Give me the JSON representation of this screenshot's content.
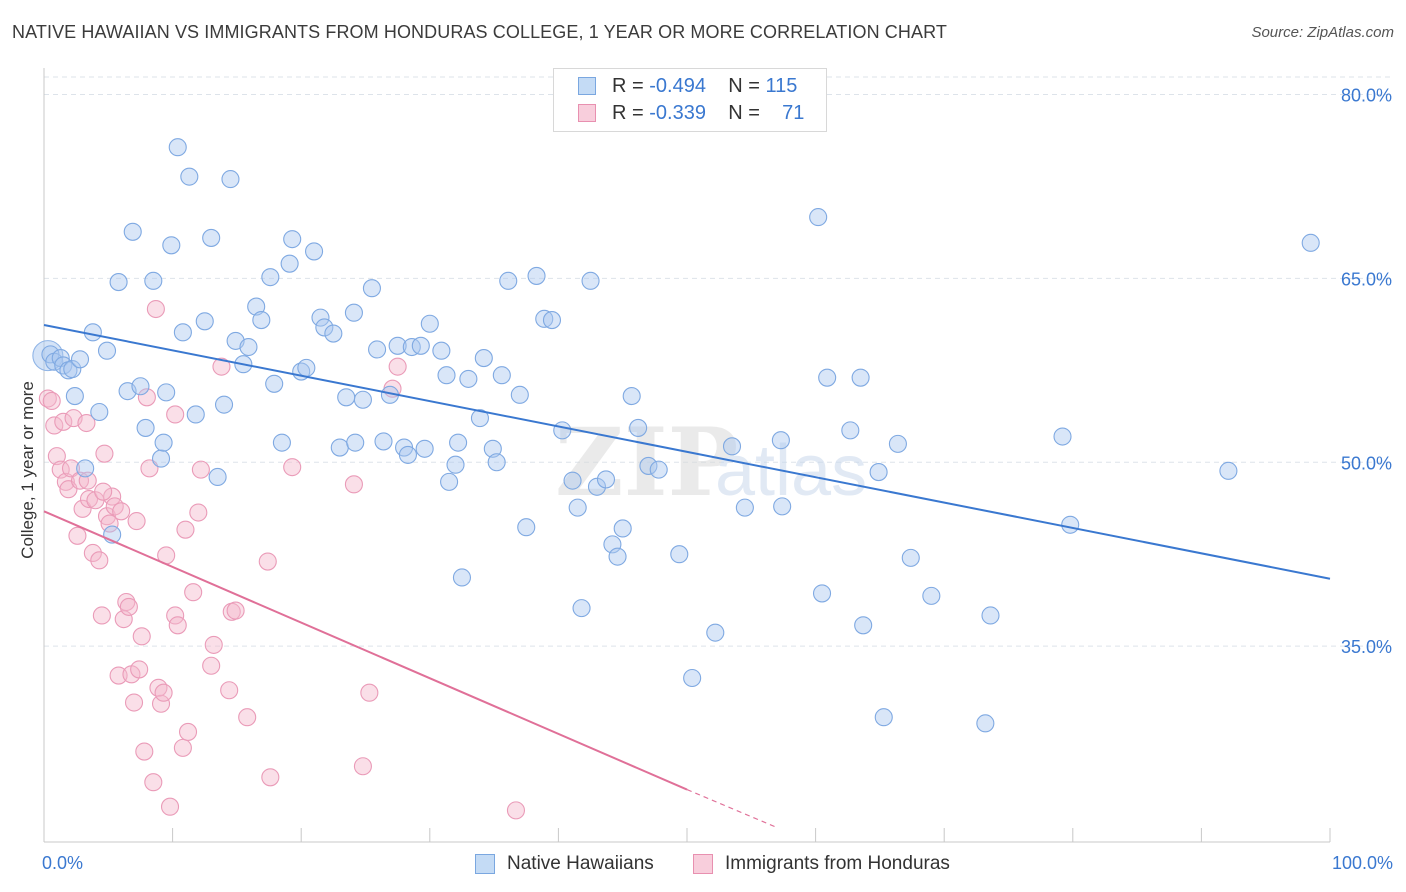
{
  "title": "NATIVE HAWAIIAN VS IMMIGRANTS FROM HONDURAS COLLEGE, 1 YEAR OR MORE CORRELATION CHART",
  "source": "Source: ZipAtlas.com",
  "legend": {
    "row1": {
      "r_label": "R = ",
      "r_value": "-0.494",
      "n_label": "N = ",
      "n_value": "115"
    },
    "row2": {
      "r_label": "R = ",
      "r_value": "-0.339",
      "n_label": "N = ",
      "n_value": "71"
    }
  },
  "colors": {
    "blue": "#3a78d0",
    "blue_fill": "#aac8f0",
    "pink": "#e07098",
    "pink_fill": "#f4b8cc",
    "grid": "#dde3ea"
  },
  "chart_data": {
    "type": "scatter",
    "xlabel": "",
    "ylabel": "College, 1 year or more",
    "xlim": [
      0,
      100
    ],
    "ylim": [
      20,
      82
    ],
    "x_tick_labels": [
      "0.0%",
      "100.0%"
    ],
    "y_ticks": [
      35,
      50,
      65,
      80
    ],
    "y_tick_labels": [
      "35.0%",
      "50.0%",
      "65.0%",
      "80.0%"
    ],
    "grid": "horizontal dashed",
    "legend_position": "top-center",
    "watermark": "ZIPatlas",
    "series": [
      {
        "name": "Native Hawaiians",
        "color": "#3a78d0",
        "trend": {
          "x0": 0,
          "y0": 61.2,
          "x1": 100,
          "y1": 40.5
        },
        "points": [
          [
            0.5,
            58.8
          ],
          [
            0.8,
            58.2
          ],
          [
            1.3,
            58.5
          ],
          [
            1.5,
            57.9
          ],
          [
            1.9,
            57.5
          ],
          [
            2.2,
            57.6
          ],
          [
            2.4,
            55.4
          ],
          [
            2.8,
            58.4
          ],
          [
            3.2,
            49.5
          ],
          [
            3.8,
            60.6
          ],
          [
            4.3,
            54.1
          ],
          [
            4.9,
            59.1
          ],
          [
            5.3,
            44.1
          ],
          [
            5.8,
            64.7
          ],
          [
            6.5,
            55.8
          ],
          [
            6.9,
            68.8
          ],
          [
            7.5,
            56.2
          ],
          [
            7.9,
            52.8
          ],
          [
            8.5,
            64.8
          ],
          [
            9.1,
            50.3
          ],
          [
            9.5,
            55.7
          ],
          [
            9.9,
            67.7
          ],
          [
            10.4,
            75.7
          ],
          [
            10.8,
            60.6
          ],
          [
            11.3,
            73.3
          ],
          [
            11.8,
            53.9
          ],
          [
            12.5,
            61.5
          ],
          [
            13.0,
            68.3
          ],
          [
            13.5,
            48.8
          ],
          [
            14.0,
            54.7
          ],
          [
            14.5,
            73.1
          ],
          [
            14.9,
            59.9
          ],
          [
            15.5,
            58.0
          ],
          [
            15.9,
            59.4
          ],
          [
            16.5,
            62.7
          ],
          [
            16.9,
            61.6
          ],
          [
            17.6,
            65.1
          ],
          [
            17.9,
            56.4
          ],
          [
            18.5,
            51.6
          ],
          [
            19.1,
            66.2
          ],
          [
            19.3,
            68.2
          ],
          [
            20.0,
            57.4
          ],
          [
            20.4,
            57.7
          ],
          [
            21.0,
            67.2
          ],
          [
            21.5,
            61.8
          ],
          [
            21.8,
            61.0
          ],
          [
            22.5,
            60.5
          ],
          [
            23.0,
            51.2
          ],
          [
            23.5,
            55.3
          ],
          [
            24.1,
            62.2
          ],
          [
            24.2,
            51.6
          ],
          [
            24.8,
            55.1
          ],
          [
            25.5,
            64.2
          ],
          [
            25.9,
            59.2
          ],
          [
            26.4,
            51.7
          ],
          [
            26.9,
            55.5
          ],
          [
            27.5,
            59.5
          ],
          [
            28.0,
            51.2
          ],
          [
            28.3,
            50.6
          ],
          [
            28.6,
            59.4
          ],
          [
            29.3,
            59.5
          ],
          [
            29.6,
            51.1
          ],
          [
            30.0,
            61.3
          ],
          [
            30.9,
            59.1
          ],
          [
            31.3,
            57.1
          ],
          [
            31.5,
            48.4
          ],
          [
            32.0,
            49.8
          ],
          [
            32.2,
            51.6
          ],
          [
            32.5,
            40.6
          ],
          [
            33.9,
            53.6
          ],
          [
            34.2,
            58.5
          ],
          [
            34.9,
            51.1
          ],
          [
            35.2,
            50.0
          ],
          [
            35.6,
            57.1
          ],
          [
            36.1,
            64.8
          ],
          [
            37.0,
            55.5
          ],
          [
            37.5,
            44.7
          ],
          [
            38.3,
            65.2
          ],
          [
            38.9,
            61.7
          ],
          [
            39.5,
            61.6
          ],
          [
            40.3,
            52.6
          ],
          [
            41.1,
            48.5
          ],
          [
            41.5,
            46.3
          ],
          [
            41.8,
            38.1
          ],
          [
            42.5,
            64.8
          ],
          [
            43.0,
            48.0
          ],
          [
            43.7,
            48.6
          ],
          [
            44.2,
            43.3
          ],
          [
            44.6,
            42.3
          ],
          [
            45.0,
            44.6
          ],
          [
            45.7,
            55.4
          ],
          [
            46.2,
            52.8
          ],
          [
            47.0,
            49.7
          ],
          [
            47.8,
            49.4
          ],
          [
            49.4,
            42.5
          ],
          [
            50.4,
            32.4
          ],
          [
            52.2,
            36.1
          ],
          [
            53.5,
            51.3
          ],
          [
            54.5,
            46.3
          ],
          [
            57.3,
            51.8
          ],
          [
            57.4,
            46.4
          ],
          [
            60.2,
            70.0
          ],
          [
            60.5,
            39.3
          ],
          [
            60.9,
            56.9
          ],
          [
            62.7,
            52.6
          ],
          [
            63.5,
            56.9
          ],
          [
            63.7,
            36.7
          ],
          [
            64.9,
            49.2
          ],
          [
            65.3,
            29.2
          ],
          [
            66.4,
            51.5
          ],
          [
            67.4,
            42.2
          ],
          [
            69.0,
            39.1
          ],
          [
            73.2,
            28.7
          ],
          [
            73.6,
            37.5
          ],
          [
            79.2,
            52.1
          ],
          [
            79.8,
            44.9
          ],
          [
            92.1,
            49.3
          ],
          [
            98.5,
            67.9
          ],
          [
            9.3,
            51.6
          ],
          [
            33.0,
            56.8
          ]
        ]
      },
      {
        "name": "Immigrants from Honduras",
        "color": "#e07098",
        "trend": {
          "x0": 0,
          "y0": 46.0,
          "x1": 50,
          "y1": 23.3
        },
        "trend_dashed": {
          "x0": 50,
          "y0": 23.3,
          "x1": 57,
          "y1": 20.2
        },
        "points": [
          [
            0.3,
            55.2
          ],
          [
            0.6,
            55.0
          ],
          [
            0.8,
            53.0
          ],
          [
            1.0,
            50.5
          ],
          [
            1.3,
            49.4
          ],
          [
            1.5,
            53.3
          ],
          [
            1.7,
            48.4
          ],
          [
            1.9,
            47.8
          ],
          [
            2.1,
            49.5
          ],
          [
            2.3,
            53.6
          ],
          [
            2.6,
            44.0
          ],
          [
            2.8,
            48.5
          ],
          [
            3.0,
            46.2
          ],
          [
            3.3,
            53.2
          ],
          [
            3.5,
            47.0
          ],
          [
            3.8,
            42.6
          ],
          [
            4.0,
            46.9
          ],
          [
            4.3,
            42.0
          ],
          [
            4.5,
            37.5
          ],
          [
            4.7,
            50.7
          ],
          [
            4.9,
            45.6
          ],
          [
            5.1,
            45.0
          ],
          [
            5.3,
            47.2
          ],
          [
            5.5,
            46.4
          ],
          [
            5.8,
            32.6
          ],
          [
            6.0,
            46.0
          ],
          [
            6.2,
            37.2
          ],
          [
            6.4,
            38.6
          ],
          [
            6.6,
            38.2
          ],
          [
            6.8,
            32.7
          ],
          [
            7.0,
            30.4
          ],
          [
            7.2,
            45.2
          ],
          [
            7.4,
            33.1
          ],
          [
            7.6,
            35.8
          ],
          [
            7.8,
            26.4
          ],
          [
            8.0,
            55.3
          ],
          [
            8.2,
            49.5
          ],
          [
            8.5,
            23.9
          ],
          [
            8.7,
            62.5
          ],
          [
            8.9,
            31.6
          ],
          [
            9.1,
            30.3
          ],
          [
            9.3,
            31.2
          ],
          [
            9.5,
            42.4
          ],
          [
            9.8,
            21.9
          ],
          [
            10.2,
            37.5
          ],
          [
            10.4,
            36.7
          ],
          [
            10.8,
            26.7
          ],
          [
            11.0,
            44.5
          ],
          [
            11.2,
            28.0
          ],
          [
            11.6,
            39.4
          ],
          [
            12.0,
            45.9
          ],
          [
            12.2,
            49.4
          ],
          [
            13.0,
            33.4
          ],
          [
            13.2,
            35.1
          ],
          [
            13.8,
            57.8
          ],
          [
            14.4,
            31.4
          ],
          [
            14.6,
            37.8
          ],
          [
            14.9,
            37.9
          ],
          [
            15.8,
            29.2
          ],
          [
            17.4,
            41.9
          ],
          [
            17.6,
            24.3
          ],
          [
            19.3,
            49.6
          ],
          [
            24.1,
            48.2
          ],
          [
            24.8,
            25.2
          ],
          [
            25.3,
            31.2
          ],
          [
            27.1,
            56.0
          ],
          [
            27.5,
            57.8
          ],
          [
            36.7,
            21.6
          ],
          [
            3.4,
            48.5
          ],
          [
            4.6,
            47.6
          ],
          [
            10.2,
            53.9
          ]
        ]
      }
    ]
  },
  "bottom_legend": {
    "item1": "Native Hawaiians",
    "item2": "Immigrants from Honduras"
  }
}
